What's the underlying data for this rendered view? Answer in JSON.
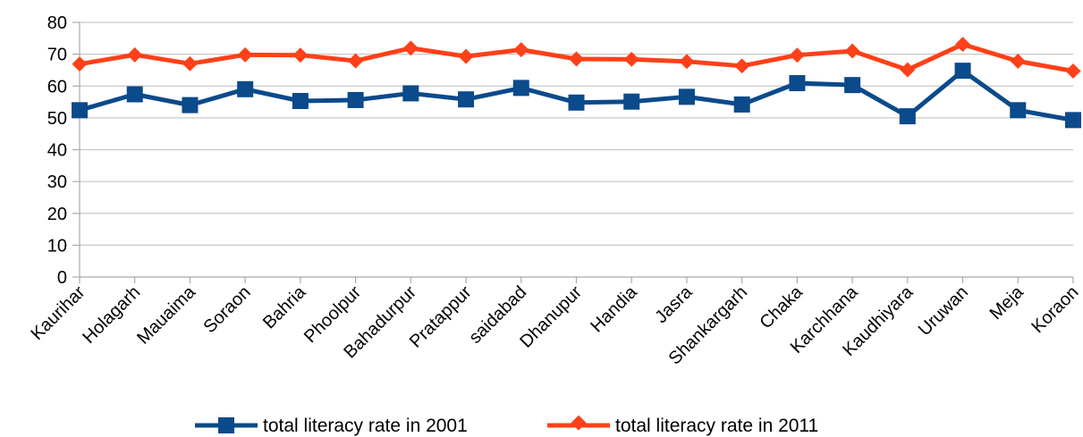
{
  "chart_data": {
    "type": "line",
    "categories": [
      "Kaurihar",
      "Holagarh",
      "Mauaima",
      "Soraon",
      "Bahria",
      "Phoolpur",
      "Bahadurpur",
      "Pratappur",
      "saidabad",
      "Dhanupur",
      "Handia",
      "Jasra",
      "Shankargarh",
      "Chaka",
      "Karchhana",
      "Kaudhiyara",
      "Uruwan",
      "Meja",
      "Koraon"
    ],
    "series": [
      {
        "name": "total literacy rate in 2001",
        "color": "#0b4a8b",
        "marker": "square",
        "values": [
          52.4,
          57.4,
          54.0,
          59.0,
          55.3,
          55.6,
          57.7,
          55.8,
          59.4,
          54.8,
          55.1,
          56.6,
          54.2,
          60.9,
          60.3,
          50.5,
          64.8,
          52.4,
          49.3
        ]
      },
      {
        "name": "total literacy rate in 2011",
        "color": "#ff4019",
        "marker": "diamond",
        "values": [
          66.9,
          69.8,
          67.0,
          69.8,
          69.7,
          67.9,
          71.9,
          69.3,
          71.4,
          68.5,
          68.4,
          67.7,
          66.3,
          69.7,
          71.0,
          65.1,
          73.1,
          67.8,
          64.7
        ]
      }
    ],
    "yticks": [
      0,
      10,
      20,
      30,
      40,
      50,
      60,
      70,
      80
    ],
    "ylim": [
      0,
      80
    ],
    "grid": true,
    "legend_position": "bottom"
  }
}
